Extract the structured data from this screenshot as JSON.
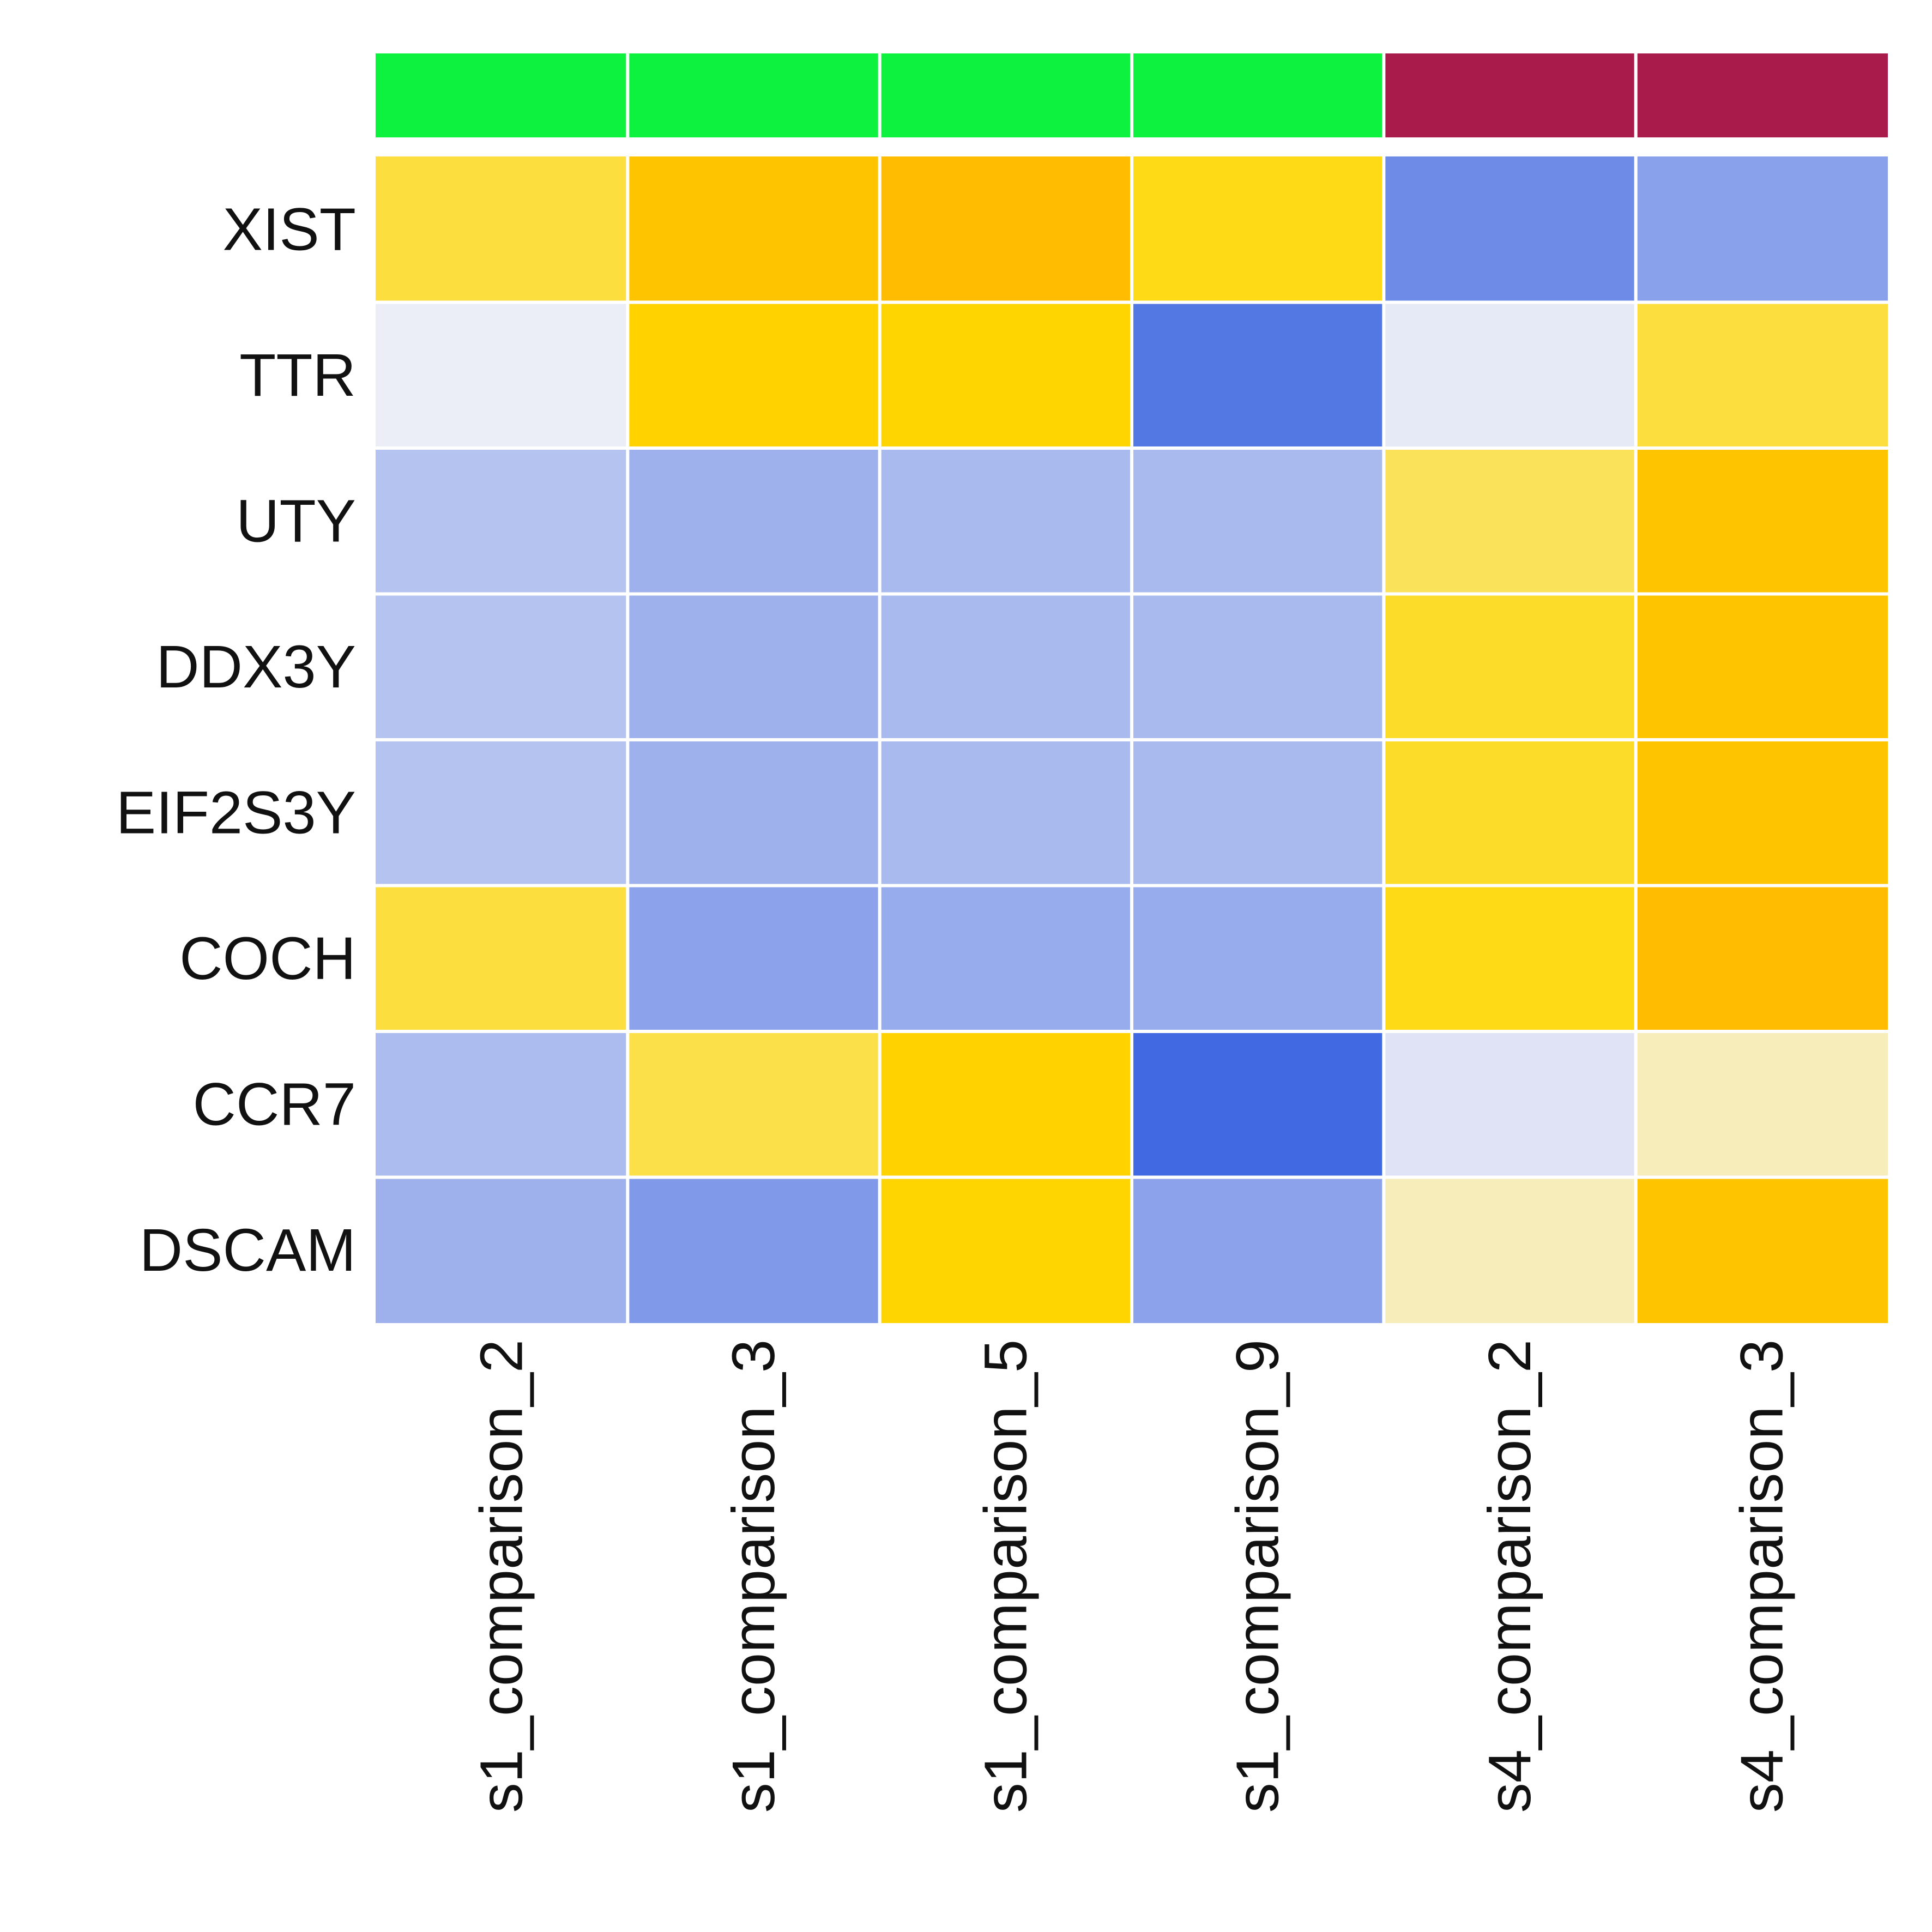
{
  "chart_data": {
    "type": "heatmap",
    "title": "",
    "xlabel": "",
    "ylabel": "",
    "columns": [
      "s1_comparison_2",
      "s1_comparison_3",
      "s1_comparison_5",
      "s1_comparison_9",
      "s4_comparison_2",
      "s4_comparison_3"
    ],
    "rows": [
      "XIST",
      "TTR",
      "UTY",
      "DDX3Y",
      "EIF2S3Y",
      "COCH",
      "CCR7",
      "DSCAM"
    ],
    "column_groups": [
      "s1",
      "s1",
      "s1",
      "s1",
      "s4",
      "s4"
    ],
    "group_colors": {
      "s1": "#0df23f",
      "s4": "#a81b4a"
    },
    "colors": {
      "low": "#4169e1",
      "mid": "#f4f4f8",
      "high": "#ffb000",
      "high_mid": "#ffd700"
    },
    "legend": "none",
    "grid": false,
    "values": [
      [
        0.45,
        0.8,
        0.88,
        0.55,
        -0.75,
        -0.6
      ],
      [
        -0.05,
        0.65,
        0.62,
        -0.9,
        -0.08,
        0.45
      ],
      [
        -0.35,
        -0.48,
        -0.42,
        -0.42,
        0.38,
        0.8
      ],
      [
        -0.35,
        -0.48,
        -0.42,
        -0.42,
        0.5,
        0.8
      ],
      [
        -0.35,
        -0.48,
        -0.42,
        -0.42,
        0.5,
        0.8
      ],
      [
        0.45,
        -0.58,
        -0.52,
        -0.52,
        0.55,
        0.88
      ],
      [
        -0.4,
        0.42,
        0.65,
        -1.0,
        -0.12,
        0.15
      ],
      [
        -0.48,
        -0.65,
        0.62,
        -0.58,
        0.15,
        0.8
      ]
    ]
  }
}
